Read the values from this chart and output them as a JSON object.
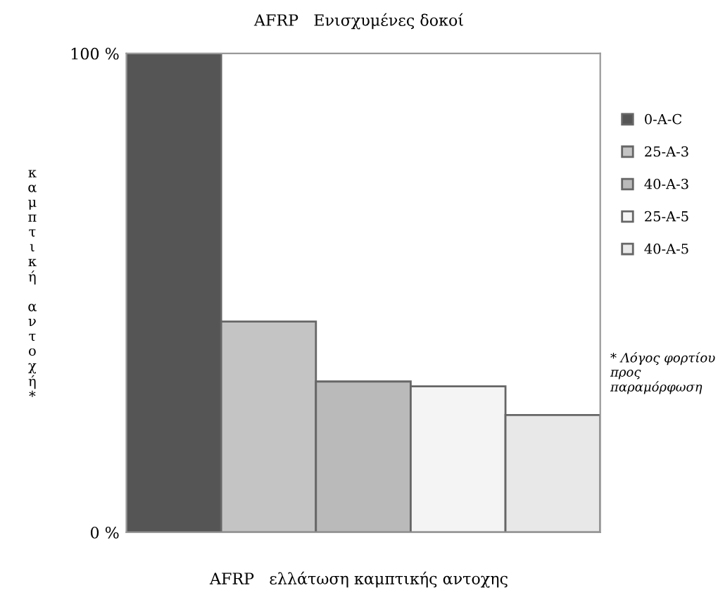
{
  "chart_data": {
    "type": "bar",
    "title": "AFRP   Ενισχυμένες δοκοί",
    "xlabel": "AFRP   ελλάτωση καμπτικής αντοχης",
    "ylabel": "καμπτική αντοχή*",
    "categories": [
      null,
      null,
      null,
      null,
      null
    ],
    "series": [
      {
        "name": "0-A-C",
        "color": "#555555",
        "values": [
          100,
          null,
          null,
          null,
          null
        ]
      },
      {
        "name": "25-A-3",
        "color": "#c4c4c4",
        "values": [
          null,
          44,
          null,
          null,
          null
        ]
      },
      {
        "name": "40-A-3",
        "color": "#bababa",
        "values": [
          null,
          null,
          31.5,
          null,
          null
        ]
      },
      {
        "name": "25-A-5",
        "color": "#f4f4f4",
        "values": [
          null,
          null,
          null,
          30.5,
          null
        ]
      },
      {
        "name": "40-A-5",
        "color": "#e8e8e8",
        "values": [
          null,
          null,
          null,
          null,
          24.5
        ]
      }
    ],
    "ylim": [
      0,
      100
    ],
    "yticks": [
      {
        "value": 0,
        "label": "0 %"
      },
      {
        "value": 100,
        "label": "100 %"
      }
    ],
    "legend": "right",
    "grid": false,
    "annotations": [
      "* Λόγος φορτίου προς παραμόρφωση"
    ]
  }
}
